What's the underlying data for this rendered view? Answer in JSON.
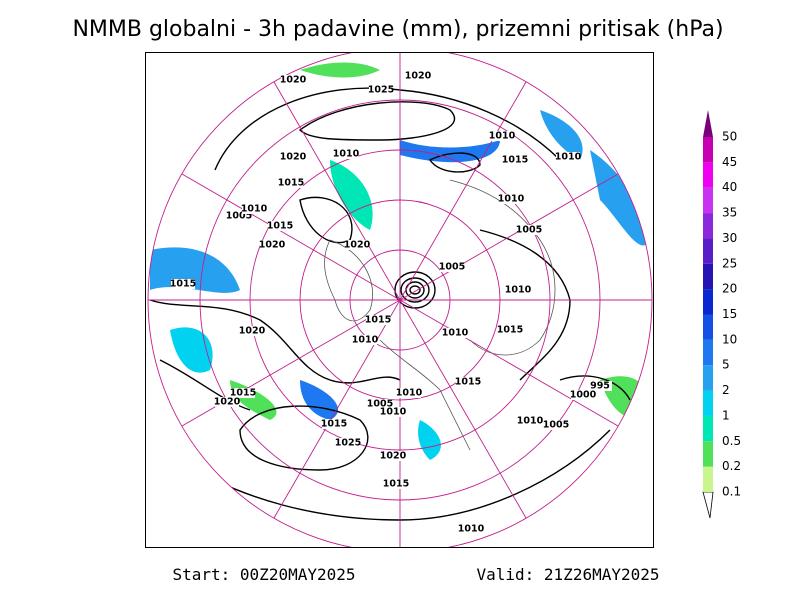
{
  "title": "NMMB globalni - 3h padavine (mm), prizemni pritisak (hPa)",
  "footer": {
    "start": "Start: 00Z20MAY2025",
    "valid": "Valid: 21Z26MAY2025"
  },
  "legend": {
    "labels": [
      "0.1",
      "0.2",
      "0.5",
      "1",
      "2",
      "5",
      "10",
      "15",
      "20",
      "25",
      "30",
      "35",
      "40",
      "45",
      "50"
    ],
    "colors": [
      "#c8f58c",
      "#50e05a",
      "#00e6b4",
      "#00d2f0",
      "#28a0f0",
      "#1e78f0",
      "#1450e6",
      "#0a28d2",
      "#2814b4",
      "#5a1ec8",
      "#8c28dc",
      "#c832f0",
      "#f000f0",
      "#c800b4",
      "#780078"
    ]
  },
  "map": {
    "contour_labels": [
      "1020",
      "1025",
      "1020",
      "1010",
      "1020",
      "1010",
      "1015",
      "1010",
      "1015",
      "1010",
      "1005",
      "1010",
      "1015",
      "1005",
      "1020",
      "1020",
      "1005",
      "1015",
      "1010",
      "1015",
      "1020",
      "1010",
      "1015",
      "1010",
      "1015",
      "1010",
      "1015",
      "1020",
      "1005",
      "1010",
      "995",
      "1000",
      "1010",
      "1005",
      "1015",
      "1025",
      "1020",
      "1015",
      "1010"
    ]
  }
}
